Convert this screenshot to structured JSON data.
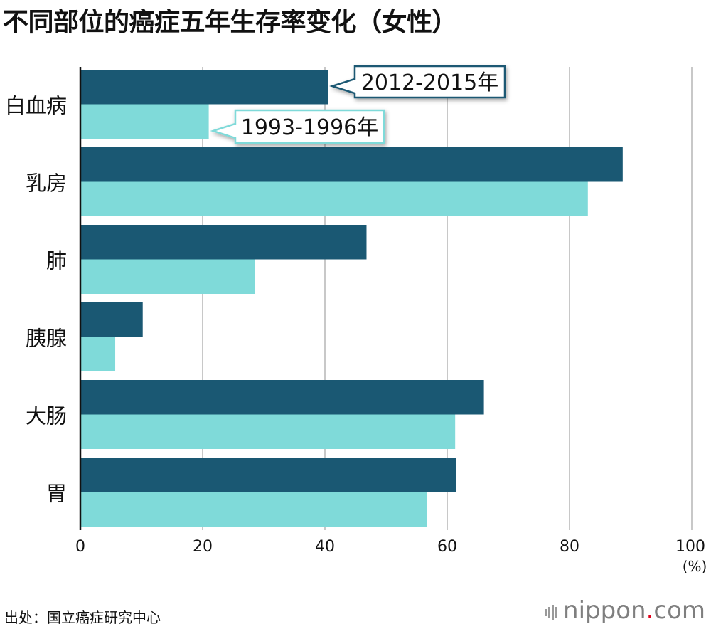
{
  "title": "不同部位的癌症五年生存率变化（女性）",
  "source": "出处：国立癌症研究中心",
  "brand": {
    "name": "nippon",
    "dot": ".",
    "tld": "com"
  },
  "colors": {
    "recent": "#1a5873",
    "old": "#7fdad9",
    "grid": "#c8c8c8",
    "axis": "#111111"
  },
  "chart_data": {
    "type": "bar",
    "orientation": "horizontal",
    "title": "不同部位的癌症五年生存率变化（女性）",
    "categories": [
      "白血病",
      "乳房",
      "肺",
      "胰腺",
      "大肠",
      "胃"
    ],
    "series": [
      {
        "name": "2012-2015年",
        "values": [
          40.5,
          88.7,
          46.8,
          10.2,
          66.0,
          61.5
        ]
      },
      {
        "name": "1993-1996年",
        "values": [
          21.0,
          83.0,
          28.5,
          5.7,
          61.3,
          56.7
        ]
      }
    ],
    "xlim": [
      0,
      100
    ],
    "xticks": [
      "0",
      "20",
      "40",
      "60",
      "80",
      "100"
    ],
    "xunit": "(%)",
    "grid": true,
    "legend": "callouts on first category"
  }
}
